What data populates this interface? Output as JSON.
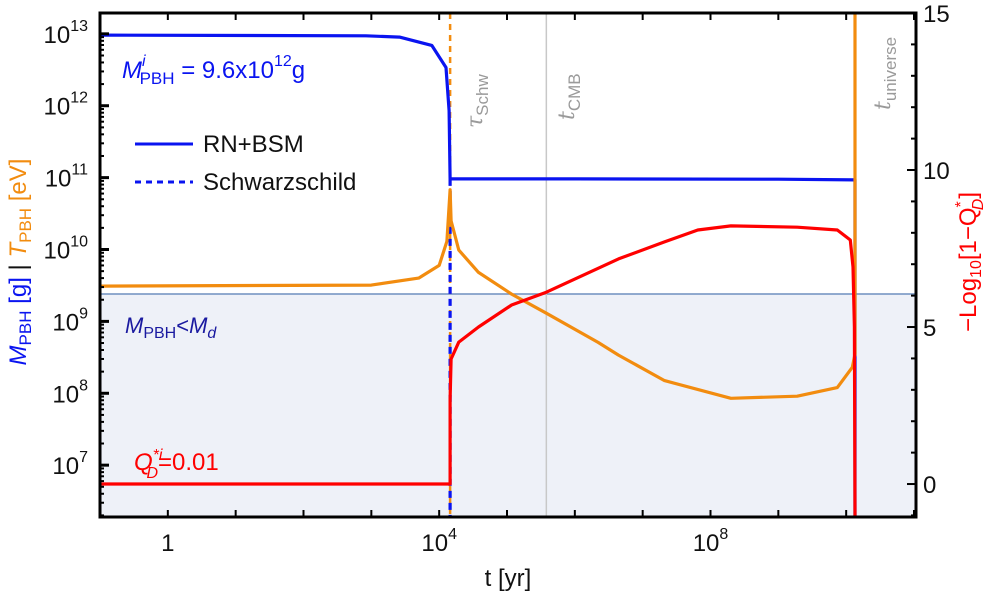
{
  "chart_data": {
    "type": "line",
    "xlabel": "t [yr]",
    "x_scale": "log",
    "xlim": [
      0.1,
      107000000000.0
    ],
    "left_axis": {
      "scale": "log",
      "ylim": [
        1900000.0,
        19500000000000.0
      ],
      "label_mass": {
        "base": "M",
        "sub": "PBH",
        "unit": " [g]",
        "color": "#0a14f0"
      },
      "separator": " | ",
      "label_temp": {
        "base": "T",
        "sub": "PBH",
        "unit": " [eV]",
        "color": "#f28c0f"
      },
      "ticks": [
        {
          "value": 10000000000000.0,
          "base": "10",
          "exp": "13"
        },
        {
          "value": 1000000000000.0,
          "base": "10",
          "exp": "12"
        },
        {
          "value": 100000000000.0,
          "base": "10",
          "exp": "11"
        },
        {
          "value": 10000000000.0,
          "base": "10",
          "exp": "10"
        },
        {
          "value": 1000000000.0,
          "base": "10",
          "exp": "9"
        },
        {
          "value": 100000000.0,
          "base": "10",
          "exp": "8"
        },
        {
          "value": 10000000.0,
          "base": "10",
          "exp": "7"
        }
      ]
    },
    "right_axis": {
      "scale": "linear",
      "ylim": [
        -1.05,
        15.0
      ],
      "label": {
        "pre": "−Log",
        "sub": "10",
        "mid": "[1−Q",
        "sup": "*",
        "sub2": "D",
        "post": "]"
      },
      "color": "#ff0000",
      "ticks": [
        {
          "value": 15,
          "label": "15"
        },
        {
          "value": 10,
          "label": "10"
        },
        {
          "value": 5,
          "label": "5"
        },
        {
          "value": 0,
          "label": "0"
        }
      ]
    },
    "x_ticks": [
      {
        "value": 1,
        "base": "1",
        "exp": ""
      },
      {
        "value": 10000.0,
        "base": "10",
        "exp": "4"
      },
      {
        "value": 100000000.0,
        "base": "10",
        "exp": "8"
      }
    ],
    "series": [
      {
        "name": "RN+BSM",
        "axis": "left",
        "color": "#0a14f0",
        "style": "solid",
        "points": [
          [
            0.1,
            9600000000000.0
          ],
          [
            832,
            9400000000000.0
          ],
          [
            2600,
            9000000000000.0
          ],
          [
            7800,
            6900000000000.0
          ],
          [
            12600,
            3400000000000.0
          ],
          [
            14000,
            850000000000.0
          ],
          [
            14500,
            96000000000.0
          ],
          [
            1000000.0,
            96000000000.0
          ],
          [
            1000000000.0,
            95000000000.0
          ],
          [
            13500000000.0,
            93000000000.0
          ],
          [
            13500000000.0,
            1900000.0
          ]
        ]
      },
      {
        "name": "Schwarzschild",
        "axis": "left",
        "color": "#0a14f0",
        "style": "dashed",
        "points": [
          [
            14500,
            96000000000.0
          ],
          [
            14500,
            1900000.0
          ]
        ]
      },
      {
        "axis": "left",
        "color": "#f28c0f",
        "style": "solid",
        "points": [
          [
            0.1,
            3100000000.0
          ],
          [
            1000,
            3200000000.0
          ],
          [
            5000,
            4000000000.0
          ],
          [
            10000,
            6000000000.0
          ],
          [
            13000,
            13000000000.0
          ],
          [
            14500,
            68000000000.0
          ],
          [
            15000,
            25000000000.0
          ],
          [
            19500,
            9800000000.0
          ],
          [
            38000,
            4800000000.0
          ],
          [
            117000,
            2400000000.0
          ],
          [
            380000,
            1300000000.0
          ],
          [
            2200000.0,
            510000000.0
          ],
          [
            4400000.0,
            340000000.0
          ],
          [
            21000000.0,
            150000000.0
          ],
          [
            200000000.0,
            85000000.0
          ],
          [
            1900000000.0,
            91000000.0
          ],
          [
            7400000000.0,
            120000000.0
          ],
          [
            12300000000.0,
            230000000.0
          ],
          [
            13500000000.0,
            350000000.0
          ],
          [
            13500000000.0,
            19500000000000.0
          ]
        ]
      },
      {
        "axis": "right",
        "color": "#ff0000",
        "style": "solid",
        "points": [
          [
            0.1,
            0
          ],
          [
            14500,
            0
          ],
          [
            14500,
            2.7
          ],
          [
            15000,
            3.98
          ],
          [
            19500,
            4.52
          ],
          [
            38000,
            5.0
          ],
          [
            117000,
            5.7
          ],
          [
            380000,
            6.11
          ],
          [
            4400000.0,
            7.17
          ],
          [
            21000000.0,
            7.71
          ],
          [
            65000000.0,
            8.09
          ],
          [
            200000000.0,
            8.22
          ],
          [
            1900000000.0,
            8.18
          ],
          [
            7400000000.0,
            8.09
          ],
          [
            11500000000.0,
            7.77
          ],
          [
            12600000000.0,
            6.91
          ],
          [
            13200000000.0,
            5.0
          ],
          [
            13500000000.0,
            -1.05
          ]
        ]
      }
    ],
    "vertical_markers": [
      {
        "x": 14500,
        "symbol": "τ",
        "sub": "Schw",
        "color": "#f28c0f",
        "style": "dashed"
      },
      {
        "x": 380000,
        "symbol": "t",
        "sub": "CMB",
        "color": "#c8c8c8",
        "style": "solid"
      },
      {
        "x": 13500000000.0,
        "symbol": "t",
        "sub": "universe",
        "color": "#c8c8c8",
        "style": "solid"
      }
    ],
    "shaded_region": {
      "below_left_value": 2400000000.0,
      "fill": "#eef1f8",
      "line_color": "#6f8fbf",
      "label": {
        "base": "M",
        "sub": "PBH",
        "lt": "<",
        "base2": "M",
        "sub2": "d"
      },
      "label_color": "#1a1aa0"
    },
    "annotations": {
      "initial_mass": {
        "base": "M",
        "sup": "i",
        "sub": "PBH",
        "text": " = 9.6x10",
        "exp": "12",
        "unit": "g",
        "color": "#0a14f0"
      },
      "initial_charge": {
        "base": "Q",
        "sup": "*i",
        "sub": "D",
        "text": "=0.01",
        "color": "#ff0000"
      }
    },
    "legend": {
      "placement": "top-left",
      "items": [
        {
          "label": "RN+BSM",
          "style": "solid"
        },
        {
          "label": "Schwarzschild",
          "style": "dashed"
        }
      ]
    },
    "grid": false
  }
}
